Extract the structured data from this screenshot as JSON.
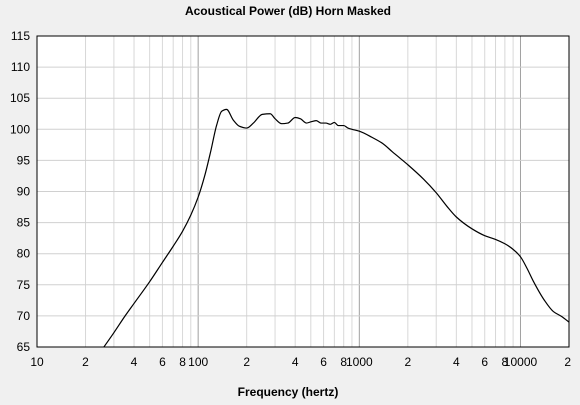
{
  "chart_data": {
    "type": "line",
    "title": "Acoustical Power (dB)   Horn    Masked",
    "xlabel": "Frequency (hertz)",
    "ylabel": "",
    "xscale": "log",
    "xlim": [
      10,
      20000
    ],
    "ylim": [
      65,
      115
    ],
    "grid": true,
    "y_ticks": [
      65,
      70,
      75,
      80,
      85,
      90,
      95,
      100,
      105,
      110,
      115
    ],
    "x_tick_labels": [
      {
        "x": 10,
        "label": "10"
      },
      {
        "x": 20,
        "label": "2"
      },
      {
        "x": 40,
        "label": "4"
      },
      {
        "x": 60,
        "label": "6"
      },
      {
        "x": 80,
        "label": "8"
      },
      {
        "x": 100,
        "label": "100"
      },
      {
        "x": 200,
        "label": "2"
      },
      {
        "x": 400,
        "label": "4"
      },
      {
        "x": 600,
        "label": "6"
      },
      {
        "x": 800,
        "label": "8"
      },
      {
        "x": 1000,
        "label": "1000"
      },
      {
        "x": 2000,
        "label": "2"
      },
      {
        "x": 4000,
        "label": "4"
      },
      {
        "x": 6000,
        "label": "6"
      },
      {
        "x": 8000,
        "label": "8"
      },
      {
        "x": 10000,
        "label": "10000"
      },
      {
        "x": 20000,
        "label": "2"
      }
    ],
    "series": [
      {
        "color": "#000000",
        "x": [
          26,
          30,
          35,
          40,
          50,
          60,
          70,
          80,
          90,
          100,
          110,
          120,
          130,
          140,
          150,
          165,
          180,
          200,
          220,
          250,
          280,
          300,
          330,
          360,
          400,
          430,
          470,
          500,
          540,
          580,
          620,
          660,
          700,
          740,
          800,
          850,
          900,
          1000,
          1200,
          1400,
          1600,
          1800,
          2000,
          2500,
          3000,
          3500,
          4000,
          5000,
          6000,
          7000,
          8000,
          9000,
          10000,
          11000,
          12000,
          14000,
          16000,
          18000,
          20000
        ],
        "y": [
          65.0,
          67.3,
          69.9,
          72.0,
          75.5,
          78.6,
          81.2,
          83.6,
          86.2,
          89.1,
          92.6,
          96.6,
          100.6,
          102.9,
          103.2,
          101.5,
          100.5,
          100.2,
          101.0,
          102.4,
          102.5,
          101.7,
          100.9,
          101.0,
          101.9,
          101.7,
          101.0,
          101.2,
          101.4,
          101.0,
          101.0,
          100.8,
          101.1,
          100.6,
          100.6,
          100.2,
          100.0,
          99.7,
          98.7,
          97.7,
          96.4,
          95.3,
          94.3,
          92.0,
          89.8,
          87.6,
          85.9,
          84.0,
          82.9,
          82.3,
          81.6,
          80.7,
          79.5,
          77.6,
          75.6,
          72.6,
          70.7,
          69.9,
          69.0
        ]
      }
    ]
  }
}
